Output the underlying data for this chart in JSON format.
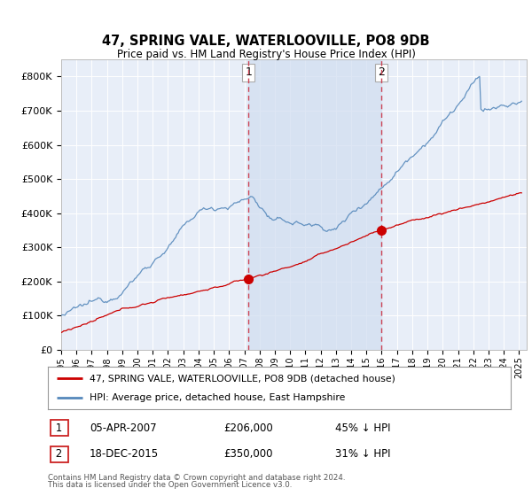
{
  "title": "47, SPRING VALE, WATERLOOVILLE, PO8 9DB",
  "subtitle": "Price paid vs. HM Land Registry's House Price Index (HPI)",
  "legend_red": "47, SPRING VALE, WATERLOOVILLE, PO8 9DB (detached house)",
  "legend_blue": "HPI: Average price, detached house, East Hampshire",
  "marker1_label": "1",
  "marker1_date": "05-APR-2007",
  "marker1_price": "£206,000",
  "marker1_hpi": "45% ↓ HPI",
  "marker1_year": 2007.27,
  "marker2_label": "2",
  "marker2_date": "18-DEC-2015",
  "marker2_price": "£350,000",
  "marker2_hpi": "31% ↓ HPI",
  "marker2_year": 2015.96,
  "marker1_value": 206000,
  "marker2_value": 350000,
  "ylim": [
    0,
    850000
  ],
  "yticks": [
    0,
    100000,
    200000,
    300000,
    400000,
    500000,
    600000,
    700000,
    800000
  ],
  "footnote1": "Contains HM Land Registry data © Crown copyright and database right 2024.",
  "footnote2": "This data is licensed under the Open Government Licence v3.0.",
  "bg_color": "#e8eef8",
  "shade_color": "#d0ddf0",
  "red_color": "#cc0000",
  "blue_color": "#5588bb"
}
